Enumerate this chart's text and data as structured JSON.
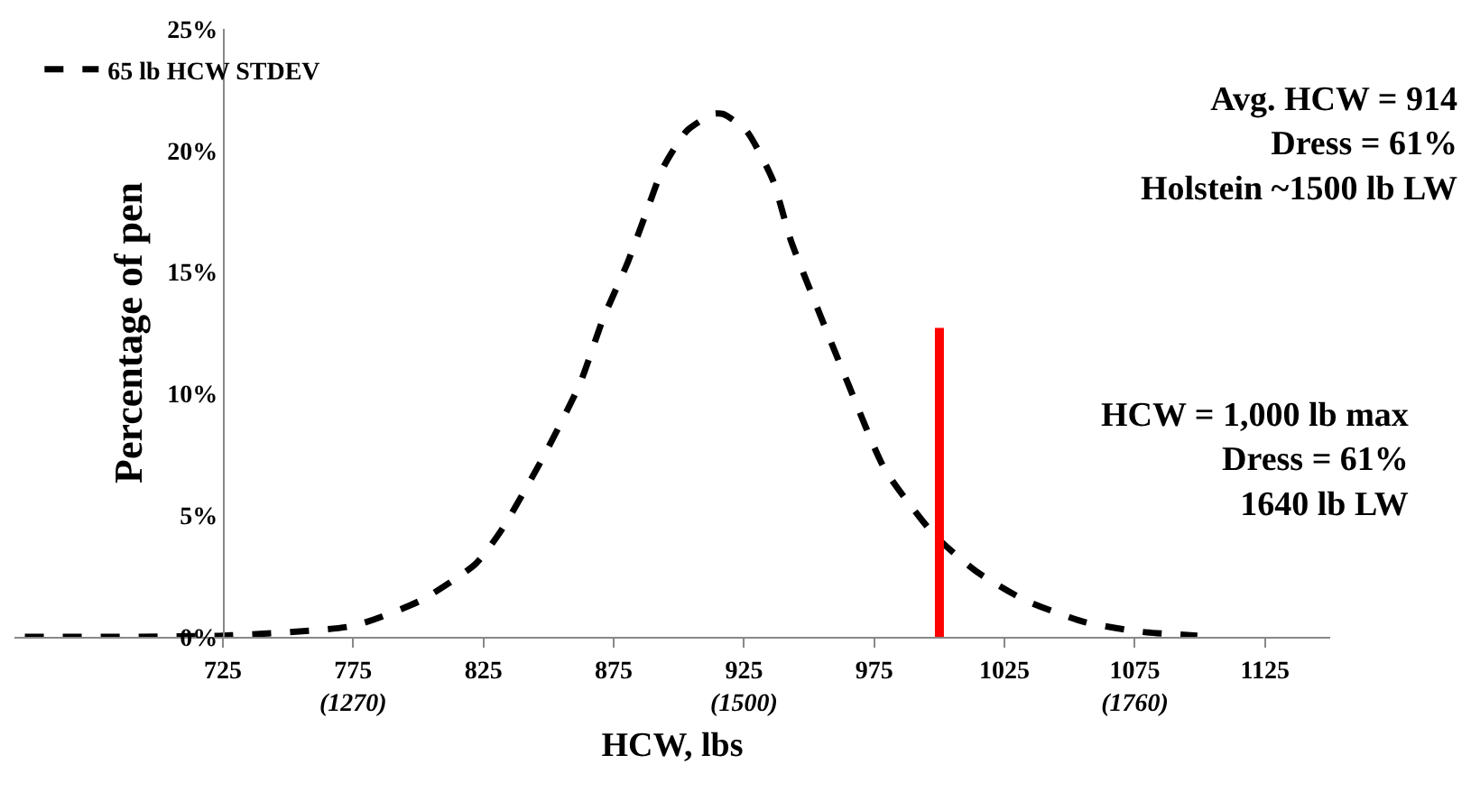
{
  "chart_data": {
    "type": "line",
    "xlabel": "HCW, lbs",
    "ylabel": "Percentage of pen",
    "xlim": [
      645,
      1150
    ],
    "xticks": [
      725,
      {
        "value": 775,
        "label": "775\n(1270)"
      },
      825,
      875,
      {
        "value": 925,
        "label": "925\n(1500)"
      },
      975,
      1025,
      {
        "value": 1075,
        "label": "1075\n(1760)"
      },
      1125
    ],
    "ylim": [
      0,
      25
    ],
    "yticks": [
      {
        "value": 0,
        "label": "0%"
      },
      {
        "value": 5,
        "label": "5%"
      },
      {
        "value": 10,
        "label": "10%"
      },
      {
        "value": 15,
        "label": "15%"
      },
      {
        "value": 20,
        "label": "20%"
      },
      {
        "value": 25,
        "label": "25%"
      }
    ],
    "grid": false,
    "legend": "top left",
    "marker": "none",
    "annotations": [
      "Avg. HCW = 914\nDress = 61%\nHolstein ~1500 lb LW",
      "HCW = 1,000 lb max\nDress = 61%\n1640 lb LW"
    ],
    "series": [
      {
        "name": "65 lb HCW STDEV",
        "color": "#000000",
        "line_style": "dashed",
        "x": [
          649,
          725,
          775,
          801,
          822,
          832,
          848,
          862,
          871,
          880,
          887,
          894,
          903,
          913,
          917,
          926,
          936,
          943,
          954,
          965,
          979,
          998,
          1014,
          1033,
          1056,
          1078,
          1099
        ],
        "values": [
          0,
          0.05,
          0.45,
          1.5,
          3.0,
          4.4,
          7.4,
          10.4,
          13.1,
          15.3,
          17.3,
          19.3,
          20.8,
          21.5,
          21.5,
          20.8,
          18.8,
          16.3,
          13.3,
          10.4,
          6.9,
          4.2,
          2.7,
          1.5,
          0.6,
          0.2,
          0.05
        ]
      },
      {
        "color": "#ff0000",
        "line_style": "solid",
        "x": [
          1000,
          1000
        ],
        "values": [
          0,
          12.7
        ]
      }
    ]
  }
}
